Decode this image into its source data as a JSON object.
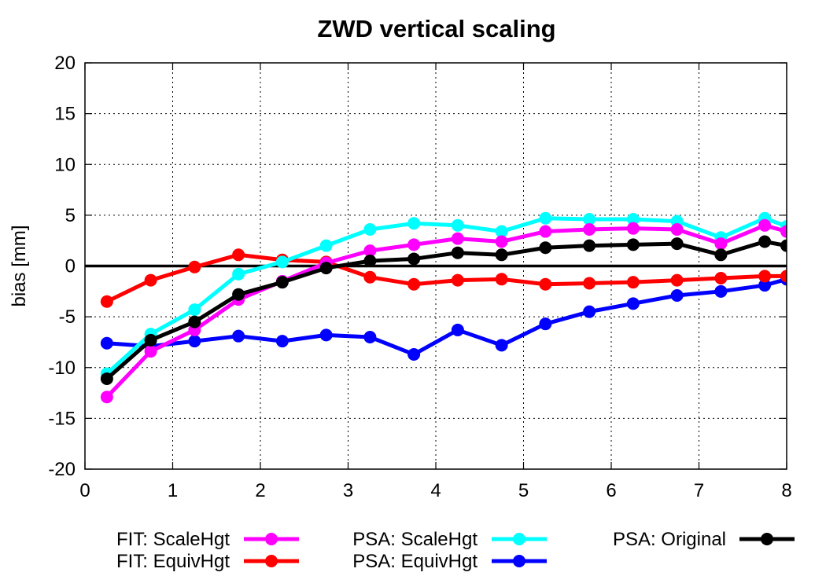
{
  "chart_data": {
    "type": "line",
    "title": "ZWD vertical scaling",
    "xlabel": "",
    "ylabel": "bias [mm]",
    "xlim": [
      0,
      8
    ],
    "ylim": [
      -20,
      20
    ],
    "xticks": [
      "0",
      "1",
      "2",
      "3",
      "4",
      "5",
      "6",
      "7",
      "8"
    ],
    "yticks": [
      "-20",
      "-15",
      "-10",
      "-5",
      "0",
      "5",
      "10",
      "15",
      "20"
    ],
    "grid": true,
    "zero_line": true,
    "legend_position": "bottom",
    "x": [
      0.25,
      0.75,
      1.25,
      1.75,
      2.25,
      2.75,
      3.25,
      3.75,
      4.25,
      4.75,
      5.25,
      5.75,
      6.25,
      6.75,
      7.25,
      7.75,
      8.0
    ],
    "series": [
      {
        "name": "FIT: ScaleHgt",
        "color": "#ff00ff",
        "values": [
          -12.9,
          -8.4,
          -6.3,
          -3.3,
          -1.5,
          0.3,
          1.5,
          2.1,
          2.7,
          2.4,
          3.4,
          3.6,
          3.7,
          3.6,
          2.2,
          4.0,
          3.4
        ]
      },
      {
        "name": "FIT: EquivHgt",
        "color": "#ff0000",
        "values": [
          -3.5,
          -1.4,
          -0.1,
          1.1,
          0.6,
          0.4,
          -1.1,
          -1.8,
          -1.4,
          -1.3,
          -1.8,
          -1.7,
          -1.6,
          -1.4,
          -1.2,
          -1.0,
          -1.0
        ]
      },
      {
        "name": "PSA: ScaleHgt",
        "color": "#00ffff",
        "values": [
          -10.6,
          -6.7,
          -4.3,
          -0.8,
          0.4,
          2.0,
          3.6,
          4.2,
          4.0,
          3.4,
          4.7,
          4.6,
          4.6,
          4.4,
          2.8,
          4.7,
          3.9
        ]
      },
      {
        "name": "PSA: EquivHgt",
        "color": "#0000ff",
        "values": [
          -7.6,
          -7.9,
          -7.4,
          -6.9,
          -7.4,
          -6.8,
          -7.0,
          -8.7,
          -6.3,
          -7.8,
          -5.7,
          -4.5,
          -3.7,
          -2.9,
          -2.5,
          -1.9,
          -1.3
        ]
      },
      {
        "name": "PSA: Original",
        "color": "#000000",
        "values": [
          -11.1,
          -7.3,
          -5.5,
          -2.8,
          -1.6,
          -0.2,
          0.5,
          0.7,
          1.3,
          1.1,
          1.8,
          2.0,
          2.1,
          2.2,
          1.1,
          2.4,
          2.0
        ]
      }
    ]
  }
}
